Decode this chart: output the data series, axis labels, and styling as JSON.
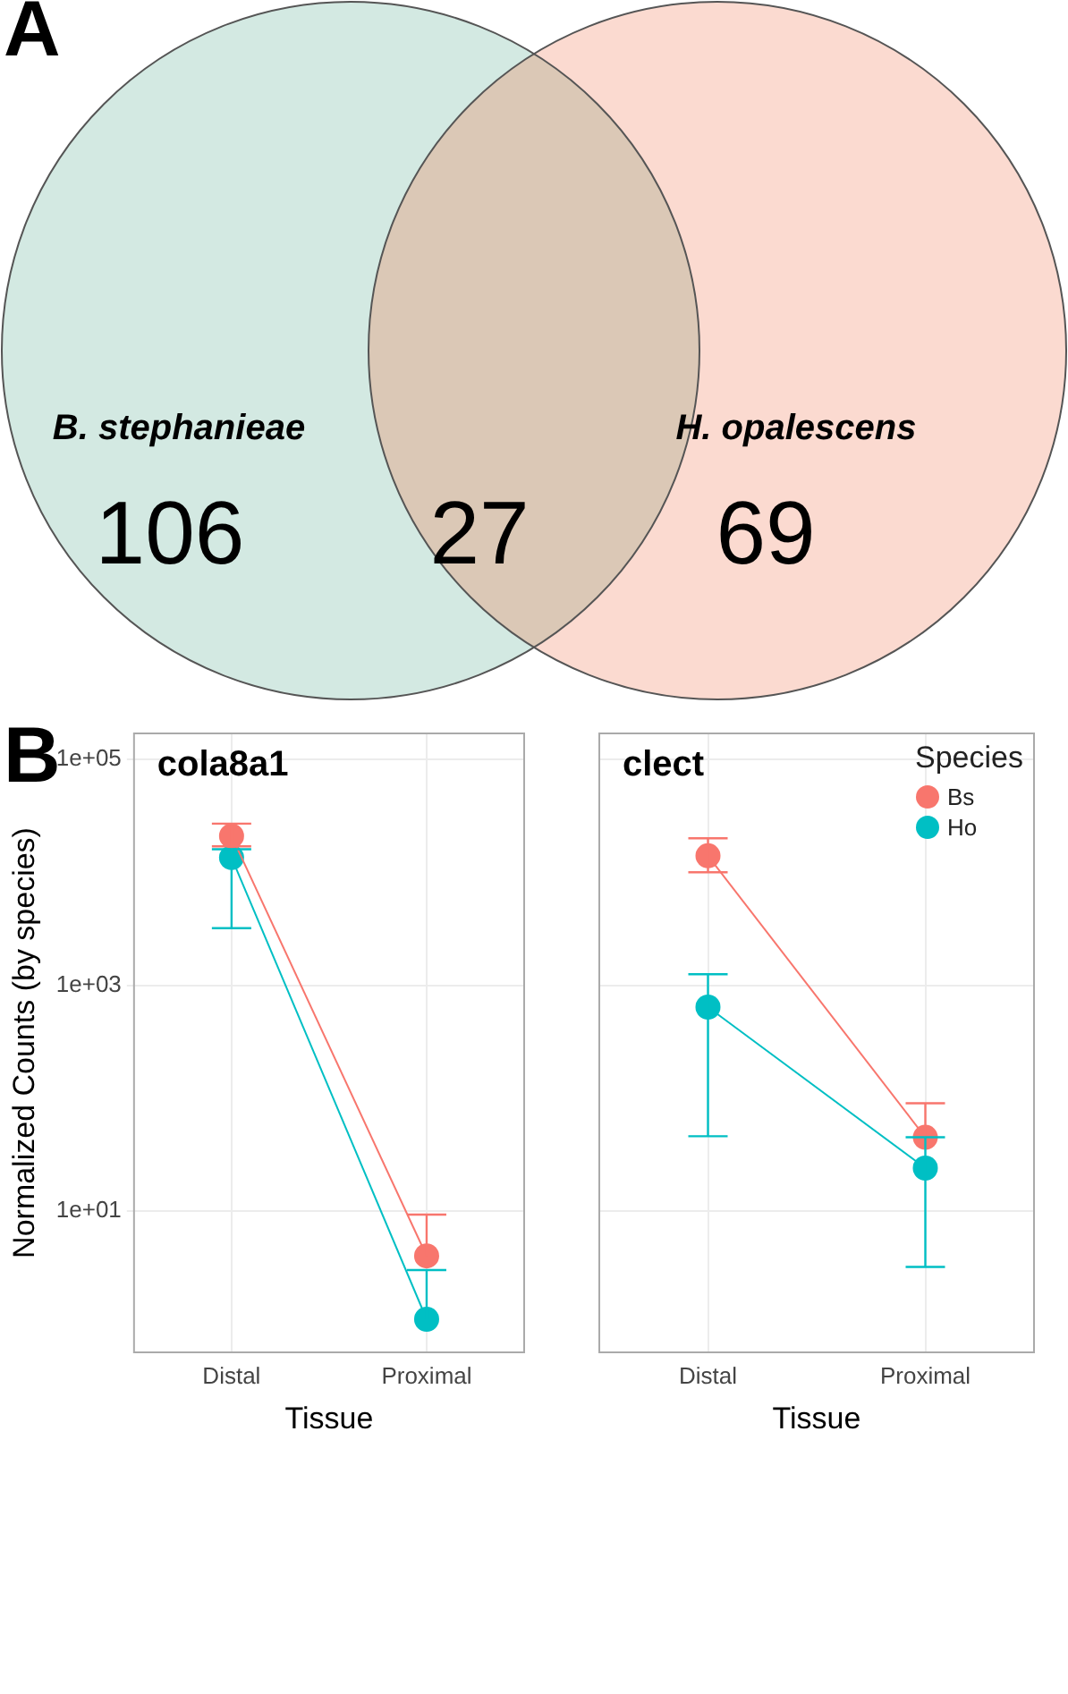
{
  "chart_data": [
    {
      "type": "other",
      "annotations": [
        "A"
      ],
      "categories": [
        "B. stephanieae",
        null,
        "H. opalescens"
      ],
      "values": [
        106,
        27,
        69
      ],
      "data_labels": true,
      "colors": [
        "#d3e9e2",
        "#dbc8b6",
        "#fbdad0"
      ]
    },
    {
      "type": "line",
      "title": "cola8a1",
      "annotations": [
        "B"
      ],
      "xlabel": "Tissue",
      "ylabel": "Normalized Counts (by species)",
      "categories": [
        "Distal",
        "Proximal"
      ],
      "log": "y",
      "ylim": [
        0.56,
        170000
      ],
      "yticks": [
        {
          "value": 100000,
          "label": "1e+05"
        },
        {
          "value": 1000,
          "label": "1e+03"
        },
        {
          "value": 10,
          "label": "1e+01"
        }
      ],
      "grid": true,
      "legend": false,
      "marker": "circle",
      "series": [
        {
          "color": "#f8766d",
          "values": [
            21000,
            4
          ],
          "errors": [
            [
              17000,
              27000
            ],
            [
              4,
              9.3
            ]
          ]
        },
        {
          "color": "#00bfc4",
          "values": [
            13500,
            1.1
          ],
          "errors": [
            [
              3200,
              16000
            ],
            [
              1.1,
              3
            ]
          ]
        }
      ]
    },
    {
      "type": "line",
      "title": "clect",
      "xlabel": "Tissue",
      "categories": [
        "Distal",
        "Proximal"
      ],
      "log": "y",
      "ylim": [
        0.56,
        170000
      ],
      "yticks": [
        {
          "value": 100000,
          "label": null
        },
        {
          "value": 1000,
          "label": null
        },
        {
          "value": 10,
          "label": null
        }
      ],
      "grid": true,
      "tick_labels": "x",
      "legend": "top right",
      "legend_title": "Species",
      "marker": "circle",
      "series": [
        {
          "name": "Bs",
          "color": "#f8766d",
          "values": [
            14000,
            45
          ],
          "errors": [
            [
              10000,
              20000
            ],
            [
              45,
              90
            ]
          ]
        },
        {
          "name": "Ho",
          "color": "#00bfc4",
          "values": [
            640,
            24
          ],
          "errors": [
            [
              46,
              1250
            ],
            [
              3.2,
              45
            ]
          ]
        }
      ]
    }
  ]
}
